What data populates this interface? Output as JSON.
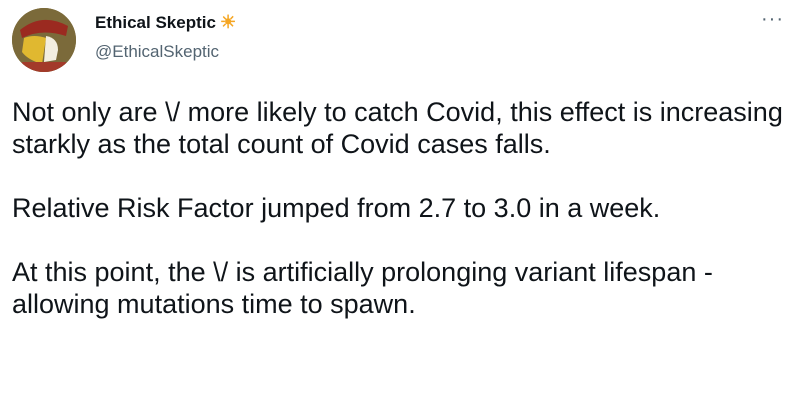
{
  "author": {
    "name": "Ethical Skeptic",
    "badge": "☀",
    "handle": "@EthicalSkeptic",
    "avatar_icon": "jack-playing-card-avatar"
  },
  "more_icon": "···",
  "tweet": {
    "paragraphs": [
      "Not only are \\/ more likely to catch Covid, this effect is increasing starkly as the total count of Covid cases falls.",
      "Relative Risk Factor jumped from 2.7 to 3.0 in a week.",
      "At this point, the \\/ is artificially prolonging variant lifespan - allowing mutations time to spawn."
    ]
  }
}
